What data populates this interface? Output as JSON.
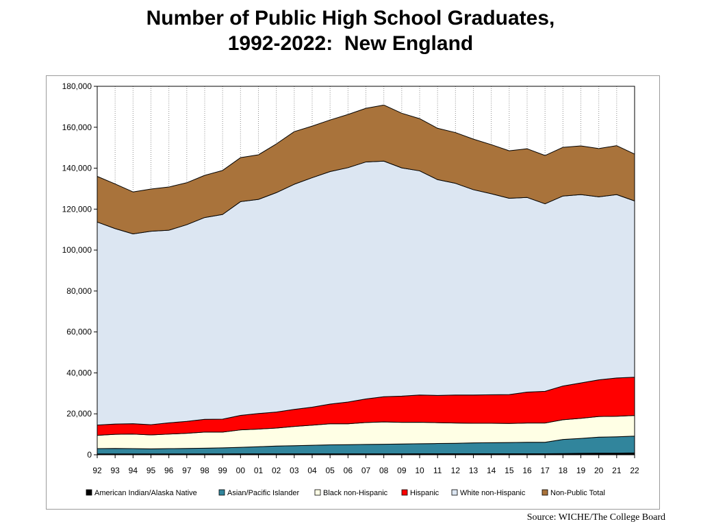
{
  "title": {
    "line1": "Number of Public High School Graduates,",
    "line2": "1992-2022:  New England"
  },
  "source": "Source: WICHE/The College Board",
  "chart_data": {
    "type": "area",
    "stacked": true,
    "categories": [
      "92",
      "93",
      "94",
      "95",
      "96",
      "97",
      "98",
      "99",
      "00",
      "01",
      "02",
      "03",
      "04",
      "05",
      "06",
      "07",
      "08",
      "09",
      "10",
      "11",
      "12",
      "13",
      "14",
      "15",
      "16",
      "17",
      "18",
      "19",
      "20",
      "21",
      "22"
    ],
    "ylim": [
      0,
      180000
    ],
    "yticks": [
      0,
      20000,
      40000,
      60000,
      80000,
      100000,
      120000,
      140000,
      160000,
      180000
    ],
    "ytick_labels": [
      "0",
      "20,000",
      "40,000",
      "60,000",
      "80,000",
      "100,000",
      "120,000",
      "140,000",
      "160,000",
      "180,000"
    ],
    "grid": "vertical dotted",
    "legend_position": "bottom",
    "series": [
      {
        "name": "American Indian/Alaska Native",
        "color": "#000000",
        "values": [
          400,
          400,
          400,
          400,
          400,
          400,
          400,
          400,
          450,
          450,
          450,
          450,
          450,
          450,
          450,
          450,
          450,
          450,
          500,
          500,
          500,
          500,
          500,
          500,
          500,
          500,
          600,
          700,
          800,
          800,
          900
        ]
      },
      {
        "name": "Asian/Pacific Islander",
        "color": "#31859c",
        "values": [
          2600,
          2700,
          2600,
          2500,
          2600,
          2700,
          2800,
          3000,
          3200,
          3500,
          3800,
          4000,
          4200,
          4400,
          4500,
          4600,
          4700,
          4800,
          4900,
          5000,
          5100,
          5300,
          5400,
          5500,
          5600,
          5600,
          6900,
          7300,
          7800,
          8000,
          8200
        ]
      },
      {
        "name": "Black non-Hispanic",
        "color": "#ffffe5",
        "values": [
          6500,
          6900,
          7100,
          6800,
          7100,
          7400,
          7900,
          7700,
          8500,
          8600,
          8800,
          9400,
          9800,
          10300,
          10200,
          10700,
          10900,
          10600,
          10500,
          10200,
          9900,
          9600,
          9500,
          9300,
          9400,
          9400,
          9600,
          9800,
          10100,
          10000,
          10100
        ]
      },
      {
        "name": "Hispanic",
        "color": "#ff0000",
        "values": [
          5000,
          5000,
          5100,
          5000,
          5500,
          5800,
          6200,
          6300,
          7100,
          7600,
          7800,
          8300,
          8800,
          9600,
          10600,
          11500,
          12300,
          12800,
          13300,
          13300,
          13700,
          13800,
          13900,
          14100,
          15100,
          15500,
          16500,
          17300,
          17900,
          18700,
          18700
        ]
      },
      {
        "name": "White non-Hispanic",
        "color": "#dce6f2",
        "values": [
          99200,
          95500,
          92700,
          94500,
          94100,
          96100,
          98600,
          100000,
          104400,
          104600,
          107200,
          110000,
          112100,
          113600,
          114500,
          115800,
          115100,
          111500,
          109500,
          105400,
          103400,
          100300,
          98200,
          95900,
          95100,
          91600,
          92800,
          92000,
          89400,
          89600,
          86100
        ]
      },
      {
        "name": "Non-Public Total",
        "color": "#a9733b",
        "values": [
          22300,
          21800,
          20500,
          20600,
          21100,
          20500,
          20600,
          21500,
          21500,
          21800,
          23800,
          25700,
          25200,
          25200,
          26000,
          26200,
          27400,
          26700,
          25500,
          25100,
          24800,
          24700,
          24000,
          23200,
          23800,
          23600,
          23800,
          23800,
          23600,
          23900,
          22900
        ]
      }
    ]
  }
}
